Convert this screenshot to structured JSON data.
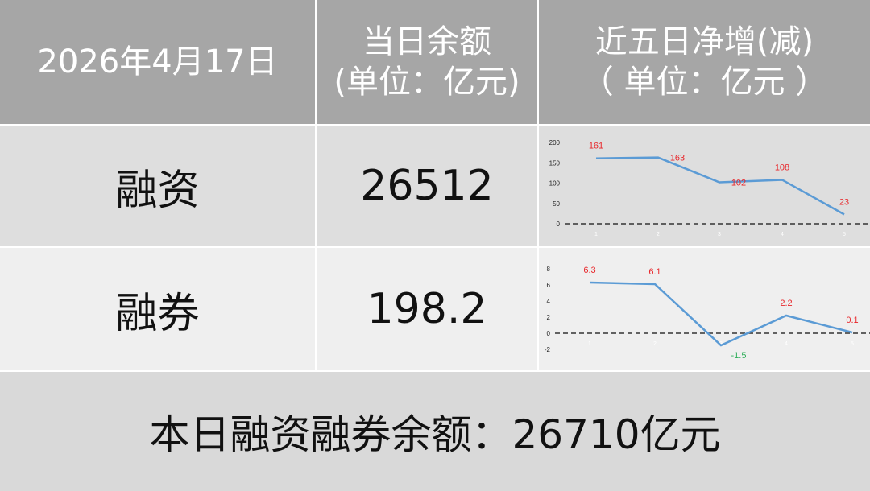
{
  "header": {
    "date": "2026年4月17日",
    "balance_col": [
      "当日余额",
      "(单位：亿元)"
    ],
    "change_col": [
      "近五日净增(减)",
      "（ 单位：亿元 ）"
    ]
  },
  "rows": [
    {
      "label": "融资",
      "balance": "26512"
    },
    {
      "label": "融券",
      "balance": "198.2"
    }
  ],
  "footer": {
    "text": "本日融资融券余额：26710亿元"
  },
  "colors": {
    "header_bg": "#a6a6a6",
    "line": "#5b9bd5",
    "label_pos": "#e8262a",
    "label_neg": "#2fae5a"
  },
  "chart_data": [
    {
      "type": "line",
      "x": [
        "1",
        "2",
        "3",
        "4",
        "5"
      ],
      "values": [
        161,
        163,
        102,
        108,
        23
      ],
      "yticks": [
        0,
        50,
        100,
        150,
        200
      ],
      "ylim": [
        0,
        200
      ],
      "zero_line": "dashed",
      "grid": false
    },
    {
      "type": "line",
      "x": [
        "1",
        "2",
        "3",
        "4",
        "5"
      ],
      "values": [
        6.3,
        6.1,
        -1.5,
        2.2,
        0.1
      ],
      "yticks": [
        -2,
        0,
        2,
        4,
        6,
        8
      ],
      "ylim": [
        -2,
        8
      ],
      "zero_line": "dashed",
      "grid": false
    }
  ]
}
